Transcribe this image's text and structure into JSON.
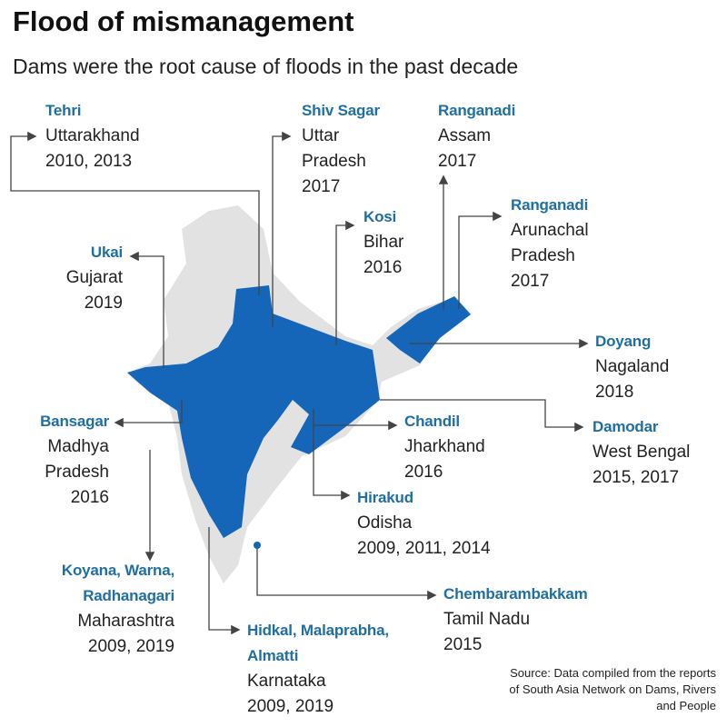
{
  "title": "Flood of mismanagement",
  "subtitle": "Dams were the root cause of floods in the past decade",
  "labels": [
    {
      "dam": "Tehri",
      "state": "Uttarakhand",
      "years": "2010, 2013"
    },
    {
      "dam": "Shiv Sagar",
      "state": "Uttar Pradesh",
      "years": "2017"
    },
    {
      "dam": "Ranganadi",
      "state": "Assam",
      "years": "2017"
    },
    {
      "dam": "Kosi",
      "state": "Bihar",
      "years": "2016"
    },
    {
      "dam": "Ranganadi",
      "state": "Arunachal Pradesh",
      "years": "2017"
    },
    {
      "dam": "Ukai",
      "state": "Gujarat",
      "years": "2019"
    },
    {
      "dam": "Doyang",
      "state": "Nagaland",
      "years": "2018"
    },
    {
      "dam": "Bansagar",
      "state": "Madhya Pradesh",
      "years": "2016"
    },
    {
      "dam": "Chandil",
      "state": "Jharkhand",
      "years": "2016"
    },
    {
      "dam": "Damodar",
      "state": "West Bengal",
      "years": "2015, 2017"
    },
    {
      "dam": "Hirakud",
      "state": "Odisha",
      "years": "2009, 2011, 2014"
    },
    {
      "dam": "Koyana, Warna, Radhanagari",
      "state": "Maharashtra",
      "years": "2009, 2019"
    },
    {
      "dam": "Chembarambakkam",
      "state": "Tamil Nadu",
      "years": "2015"
    },
    {
      "dam": "Hidkal, Malaprabha, Almatti",
      "state": "Karnataka",
      "years": "2009, 2019"
    }
  ],
  "source": "Source: Data compiled from the reports of South Asia Network on Dams, Rivers and People"
}
